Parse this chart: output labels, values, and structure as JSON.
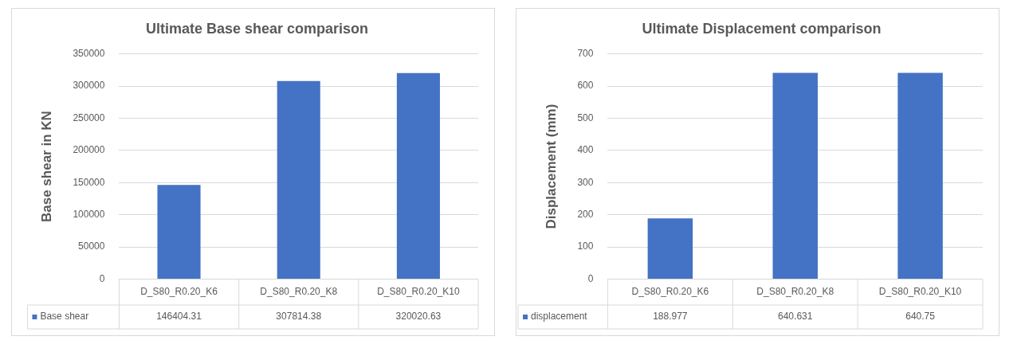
{
  "chart_data": [
    {
      "type": "bar",
      "title": "Ultimate Base shear comparison",
      "ylabel": "Base shear in KN",
      "categories": [
        "D_S80_R0.20_K6",
        "D_S80_R0.20_K8",
        "D_S80_R0.20_K10"
      ],
      "series": [
        {
          "name": "Base shear",
          "color": "#4472c4",
          "values": [
            146404.31,
            307814.38,
            320020.63
          ]
        }
      ],
      "ylim": [
        0,
        350000
      ],
      "yticks": [
        0,
        50000,
        100000,
        150000,
        200000,
        250000,
        300000,
        350000
      ],
      "grid": "y",
      "legend": "bottom left",
      "data_labels": true
    },
    {
      "type": "bar",
      "title": "Ultimate Displacement comparison",
      "ylabel": "Displacement (mm)",
      "categories": [
        "D_S80_R0.20_K6",
        "D_S80_R0.20_K8",
        "D_S80_R0.20_K10"
      ],
      "series": [
        {
          "name": "displacement",
          "color": "#4472c4",
          "values": [
            188.977,
            640.631,
            640.75
          ]
        }
      ],
      "ylim": [
        0,
        700
      ],
      "yticks": [
        0,
        100,
        200,
        300,
        400,
        500,
        600,
        700
      ],
      "grid": "y",
      "legend": "bottom left",
      "data_labels": true
    }
  ]
}
